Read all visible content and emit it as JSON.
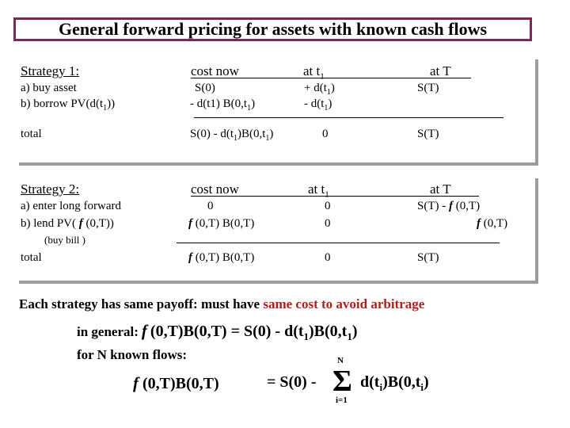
{
  "title": "General forward pricing for assets with known cash flows",
  "strategy1": {
    "label": "Strategy 1:",
    "col_cost": "cost now",
    "col_t1": "at t",
    "col_t1_sub": "1",
    "col_T": "at T",
    "row_a_label": "a) buy asset",
    "row_a_cost": "S(0)",
    "row_a_t1": "+ d(t",
    "row_a_t1_sub": "1",
    "row_a_t1_end": ")",
    "row_a_T": "S(T)",
    "row_b_label_pre": "b) borrow PV(d(t",
    "row_b_label_sub": "1",
    "row_b_label_end": "))",
    "row_b_cost_pre": "- d(t1) B(0,t",
    "row_b_cost_sub": "1",
    "row_b_cost_end": ")",
    "row_b_t1_pre": "- d(t",
    "row_b_t1_sub": "1",
    "row_b_t1_end": ")",
    "total_label": "total",
    "total_cost_a": "S(0) - d(t",
    "total_cost_sub1": "1",
    "total_cost_b": ")B(0,t",
    "total_cost_sub2": "1",
    "total_cost_c": ")",
    "total_t1": "0",
    "total_T": "S(T)"
  },
  "strategy2": {
    "label": "Strategy 2:",
    "col_cost": "cost now",
    "col_t1": "at t",
    "col_t1_sub": "1",
    "col_T": "at T",
    "row_a_label": "a) enter long forward",
    "row_a_cost": "0",
    "row_a_t1": "0",
    "row_a_T_pre": "S(T) -",
    "row_a_T_f": "f",
    "row_a_T_end": "(0,T)",
    "row_b_label_pre": "b) lend PV(",
    "row_b_label_f": "f",
    "row_b_label_end": "(0,T))",
    "row_b_cost_f": "f",
    "row_b_cost_end": "(0,T) B(0,T)",
    "row_b_t1": "0",
    "row_b_T_f": "f",
    "row_b_T_end": "(0,T)",
    "buy_bill": "(buy bill )",
    "total_label": "total",
    "total_cost_f": "f",
    "total_cost_end": "(0,T) B(0,T)",
    "total_t1": "0",
    "total_T": "S(T)"
  },
  "conclusion": {
    "pre": "Each strategy has same payoff:  must have",
    "red": "same cost to avoid arbitrage"
  },
  "general": {
    "label": "in general:",
    "f": "f",
    "eq_a": "(0,T)B(0,T) = S(0) - d(t",
    "eq_sub1": "1",
    "eq_b": ")B(0,t",
    "eq_sub2": "1",
    "eq_c": ")"
  },
  "nflows": {
    "label": "for N known flows:",
    "f": "f",
    "lhs": "(0,T)B(0,T)",
    "eq": "= S(0) -",
    "sigma": "Σ",
    "upper": "N",
    "lower": "i=1",
    "term_a": "d(t",
    "term_sub1": "i",
    "term_b": ")B(0,t",
    "term_sub2": "i",
    "term_c": ")"
  }
}
